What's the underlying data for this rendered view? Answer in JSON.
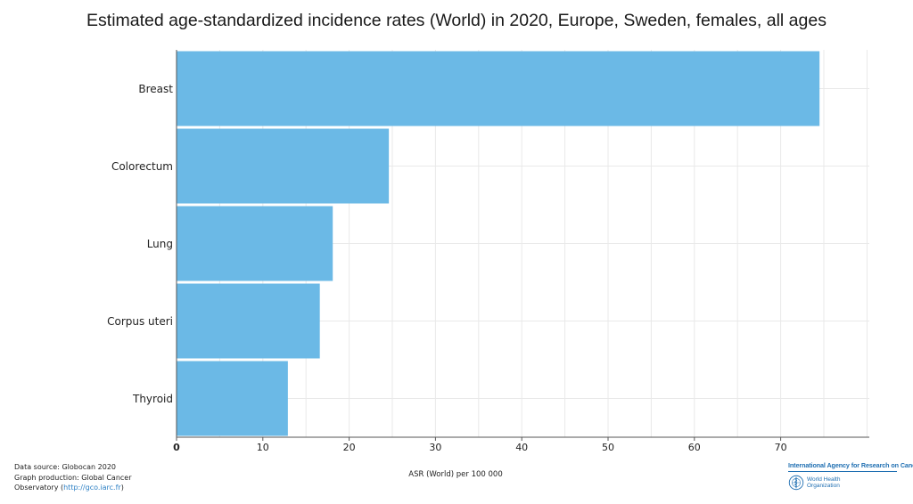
{
  "chart_data": {
    "type": "bar",
    "orientation": "horizontal",
    "title": "Estimated age-standardized incidence rates (World) in 2020, Europe, Sweden, females, all ages",
    "categories": [
      "Breast",
      "Colorectum",
      "Lung",
      "Corpus uteri",
      "Thyroid"
    ],
    "values": [
      74.5,
      24.6,
      18.1,
      16.6,
      12.9
    ],
    "xlabel": "ASR (World) per 100 000",
    "ylabel": "",
    "xlim": [
      0,
      80
    ],
    "xticks": [
      0,
      10,
      20,
      30,
      40,
      50,
      60,
      70
    ],
    "grid": true,
    "legend": "none",
    "bar_color": "#6bb9e6"
  },
  "footer": {
    "source_line1": "Data source: Globocan 2020",
    "source_line2": "Graph production: Global Cancer",
    "source_line3_prefix": "Observatory (",
    "source_link": "http://gco.iarc.fr",
    "source_line3_suffix": ")"
  },
  "logos": {
    "iarc": "International Agency for Research on Cancer",
    "who_line1": "World Health",
    "who_line2": "Organization",
    "who_icon": "who-emblem-icon",
    "brand_color": "#1f6fb2"
  }
}
